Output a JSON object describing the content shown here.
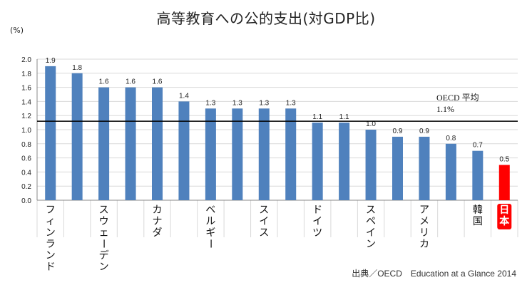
{
  "chart_data": {
    "type": "bar",
    "title": "高等教育への公的支出(対GDP比)",
    "ylabel": "(%)",
    "ylim": [
      0,
      2.0
    ],
    "ytick_step": 0.2,
    "categories": [
      "フィンランド",
      "",
      "スウェーデン",
      "",
      "カナダ",
      "",
      "ベルギー",
      "",
      "スイス",
      "",
      "ドイツ",
      "",
      "スペイン",
      "",
      "アメリカ",
      "",
      "韓国",
      "日本"
    ],
    "values": [
      1.9,
      1.8,
      1.6,
      1.6,
      1.6,
      1.4,
      1.3,
      1.3,
      1.3,
      1.3,
      1.1,
      1.1,
      1.0,
      0.9,
      0.9,
      0.8,
      0.7,
      0.5
    ],
    "value_labels": [
      "1.9",
      "1.8",
      "1.6",
      "1.6",
      "1.6",
      "1.4",
      "1.3",
      "1.3",
      "1.3",
      "1.3",
      "1.1",
      "1.1",
      "1.0",
      "0.9",
      "0.9",
      "0.8",
      "0.7",
      "0.5"
    ],
    "highlight_index": 17,
    "reference_line": {
      "value": 1.12,
      "label_line1": "OECD 平均",
      "label_line2": "1.1%"
    },
    "colors": {
      "bar": "#4f81bd",
      "highlight": "#ff0000",
      "gridline": "#d9d9d9",
      "axis": "#888888",
      "reference": "#000000"
    },
    "grid": true,
    "source": "出典／OECD　Education at a Glance 2014"
  }
}
